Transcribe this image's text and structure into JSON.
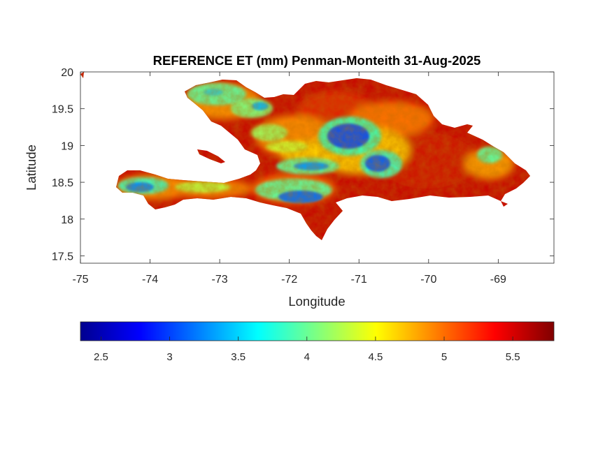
{
  "figure": {
    "title": "REFERENCE ET (mm) Penman-Monteith 31-Aug-2025",
    "xlabel": "Longitude",
    "ylabel": "Latitude",
    "x_ticks": [
      "-75",
      "-74",
      "-73",
      "-72",
      "-71",
      "-70",
      "-69"
    ],
    "y_ticks": [
      "20",
      "19.5",
      "19",
      "18.5",
      "18",
      "17.5"
    ],
    "colorbar_ticks": [
      "2.5",
      "3",
      "3.5",
      "4",
      "4.5",
      "5",
      "5.5"
    ]
  },
  "chart_data": {
    "type": "heatmap",
    "title": "REFERENCE ET (mm) Penman-Monteith 31-Aug-2025",
    "xlabel": "Longitude",
    "ylabel": "Latitude",
    "xlim": [
      -75,
      -68.2
    ],
    "ylim": [
      17.4,
      20
    ],
    "x_tick_values": [
      -75,
      -74,
      -73,
      -72,
      -71,
      -70,
      -69
    ],
    "y_tick_values": [
      17.5,
      18,
      18.5,
      19,
      19.5,
      20
    ],
    "colormap": "jet",
    "clim": [
      2.35,
      5.8
    ],
    "colorbar_tick_values": [
      2.5,
      3,
      3.5,
      4,
      4.5,
      5,
      5.5
    ],
    "colorbar_location": "southoutside",
    "grid": false,
    "region": "Hispaniola (Haiti and Dominican Republic)",
    "low_value_zones": [
      {
        "lon": -71.25,
        "lat": 19.1,
        "value": 2.9
      },
      {
        "lon": -71.5,
        "lat": 18.42,
        "value": 3.0
      },
      {
        "lon": -72.05,
        "lat": 18.35,
        "value": 3.1
      },
      {
        "lon": -74.2,
        "lat": 18.45,
        "value": 3.0
      },
      {
        "lon": -70.7,
        "lat": 18.75,
        "value": 3.2
      },
      {
        "lon": -72.6,
        "lat": 19.8,
        "value": 3.9
      },
      {
        "lon": -69.0,
        "lat": 18.9,
        "value": 4.0
      }
    ],
    "typical_lowland_value": 5.4,
    "min_value": 2.6,
    "max_value": 5.8
  }
}
